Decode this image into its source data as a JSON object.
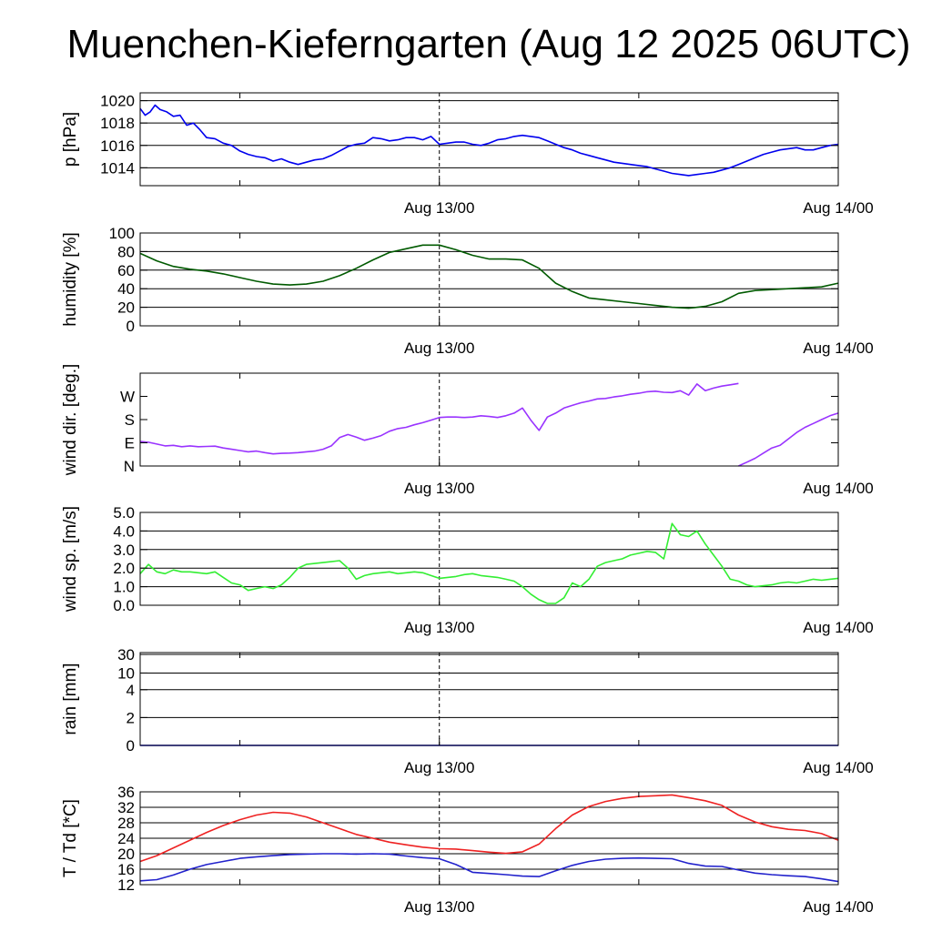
{
  "title": "Muenchen-Kieferngarten (Aug 12 2025 06UTC)",
  "time_axis": {
    "start_hour": 0,
    "end_hour": 42,
    "major_ticks": [
      {
        "hour": 18,
        "label": "Aug 13/00"
      },
      {
        "hour": 42,
        "label": "Aug 14/00"
      }
    ],
    "minor_tick_hours": [
      6,
      30
    ],
    "dashed_line_hour": 18
  },
  "chart_data": [
    {
      "id": "pressure",
      "type": "line",
      "ylabel": "p [hPa]",
      "ylim": [
        1012.4,
        1020.7
      ],
      "yticks": [
        1014,
        1016,
        1018,
        1020
      ],
      "ytick_labels": [
        "1014",
        "1016",
        "1018",
        "1020"
      ],
      "grid": [
        1014,
        1016,
        1018,
        1020
      ],
      "series": [
        {
          "name": "pressure",
          "color": "#0000ee",
          "x": [
            0,
            0.3,
            0.6,
            0.9,
            1.2,
            1.6,
            2,
            2.4,
            2.8,
            3.2,
            3.6,
            4,
            4.5,
            5,
            5.5,
            6,
            6.5,
            7,
            7.5,
            8,
            8.5,
            9,
            9.5,
            10,
            10.5,
            11,
            11.5,
            12,
            12.5,
            13,
            13.5,
            14,
            14.5,
            15,
            15.5,
            16,
            16.5,
            17,
            17.5,
            18,
            18.5,
            19,
            19.5,
            20,
            20.5,
            21,
            21.5,
            22,
            22.5,
            23,
            23.5,
            24,
            24.5,
            25,
            25.5,
            26,
            26.5,
            27,
            27.5,
            28,
            28.5,
            29,
            29.5,
            30,
            30.5,
            31,
            31.5,
            32,
            32.5,
            33,
            33.5,
            34,
            34.5,
            35,
            35.5,
            36,
            36.5,
            37,
            37.5,
            38,
            38.5,
            39,
            39.5,
            40,
            40.5,
            41,
            41.5,
            42
          ],
          "values": [
            1019.3,
            1018.7,
            1019.0,
            1019.6,
            1019.2,
            1019.0,
            1018.6,
            1018.7,
            1017.8,
            1018.0,
            1017.4,
            1016.7,
            1016.6,
            1016.2,
            1016.0,
            1015.5,
            1015.2,
            1015.0,
            1014.9,
            1014.6,
            1014.8,
            1014.5,
            1014.3,
            1014.5,
            1014.7,
            1014.8,
            1015.1,
            1015.5,
            1015.9,
            1016.1,
            1016.2,
            1016.7,
            1016.6,
            1016.4,
            1016.5,
            1016.7,
            1016.7,
            1016.5,
            1016.8,
            1016.1,
            1016.2,
            1016.3,
            1016.3,
            1016.1,
            1016.0,
            1016.2,
            1016.5,
            1016.6,
            1016.8,
            1016.9,
            1016.8,
            1016.7,
            1016.4,
            1016.1,
            1015.8,
            1015.6,
            1015.3,
            1015.1,
            1014.9,
            1014.7,
            1014.5,
            1014.4,
            1014.3,
            1014.2,
            1014.1,
            1013.9,
            1013.7,
            1013.5,
            1013.4,
            1013.3,
            1013.4,
            1013.5,
            1013.6,
            1013.8,
            1014.0,
            1014.3,
            1014.6,
            1014.9,
            1015.2,
            1015.4,
            1015.6,
            1015.7,
            1015.8,
            1015.6,
            1015.6,
            1015.8,
            1016.0,
            1016.1
          ]
        }
      ]
    },
    {
      "id": "humidity",
      "type": "line",
      "ylabel": "humidity [%]",
      "ylim": [
        0,
        100
      ],
      "yticks": [
        0,
        20,
        40,
        60,
        80,
        100
      ],
      "ytick_labels": [
        "0",
        "20",
        "40",
        "60",
        "80",
        "100"
      ],
      "grid": [
        20,
        40,
        60,
        80
      ],
      "series": [
        {
          "name": "humidity",
          "color": "#005a00",
          "x": [
            0,
            1,
            2,
            3,
            4,
            5,
            6,
            7,
            8,
            9,
            10,
            11,
            12,
            13,
            14,
            15,
            16,
            17,
            18,
            19,
            20,
            21,
            22,
            23,
            24,
            25,
            26,
            27,
            28,
            29,
            30,
            31,
            32,
            33,
            34,
            35,
            36,
            37,
            38,
            39,
            40,
            41,
            42
          ],
          "values": [
            78,
            70,
            64,
            61,
            59,
            56,
            52,
            48,
            45,
            44,
            45,
            48,
            54,
            62,
            71,
            79,
            83,
            87,
            87,
            82,
            76,
            72,
            72,
            71,
            62,
            46,
            37,
            30,
            28,
            26,
            24,
            22,
            20,
            19,
            21,
            26,
            35,
            38,
            39,
            40,
            41,
            42,
            46
          ]
        }
      ]
    },
    {
      "id": "wind_direction",
      "type": "line",
      "ylabel": "wind dir. [deg.]",
      "ylim": [
        0,
        360
      ],
      "yticks": [
        0,
        90,
        180,
        270
      ],
      "ytick_labels": [
        "N",
        "E",
        "S",
        "W"
      ],
      "grid": [],
      "series": [
        {
          "name": "wind direction",
          "color": "#9933ff",
          "x": [
            0,
            0.5,
            1,
            1.5,
            2,
            2.5,
            3,
            3.5,
            4,
            4.5,
            5,
            5.5,
            6,
            6.5,
            7,
            7.5,
            8,
            8.5,
            9,
            9.5,
            10,
            10.5,
            11,
            11.5,
            12,
            12.5,
            13,
            13.5,
            14,
            14.5,
            15,
            15.5,
            16,
            16.5,
            17,
            17.5,
            18,
            18.5,
            19,
            19.5,
            20,
            20.5,
            21,
            21.5,
            22,
            22.5,
            23,
            23.5,
            24,
            24.5,
            25,
            25.5,
            26,
            26.5,
            27,
            27.5,
            28,
            28.5,
            29,
            29.5,
            30,
            30.5,
            31,
            31.5,
            32,
            32.5,
            33,
            33.5,
            34,
            34.5,
            35,
            35.5,
            36
          ],
          "values": [
            95,
            92,
            85,
            78,
            80,
            75,
            78,
            75,
            76,
            77,
            70,
            65,
            60,
            55,
            58,
            52,
            47,
            49,
            50,
            52,
            55,
            58,
            65,
            78,
            110,
            122,
            112,
            100,
            108,
            118,
            135,
            145,
            150,
            160,
            168,
            178,
            188,
            190,
            190,
            188,
            190,
            195,
            192,
            188,
            195,
            205,
            225,
            178,
            138,
            190,
            205,
            225,
            235,
            245,
            252,
            260,
            262,
            268,
            272,
            278,
            282,
            288,
            290,
            286,
            285,
            292,
            275,
            318,
            292,
            302,
            310,
            315,
            320
          ]
        },
        {
          "name": "wind direction (wrapped)",
          "color": "#9933ff",
          "x": [
            36,
            36.5,
            37,
            37.5,
            38,
            38.5,
            39,
            39.5,
            40,
            40.5,
            41,
            41.5,
            42
          ],
          "values": [
            0,
            15,
            30,
            50,
            70,
            80,
            105,
            130,
            150,
            165,
            180,
            195,
            205
          ]
        }
      ]
    },
    {
      "id": "wind_speed",
      "type": "line",
      "ylabel": "wind sp. [m/s]",
      "ylim": [
        0,
        5
      ],
      "yticks": [
        0,
        1,
        2,
        3,
        4,
        5
      ],
      "ytick_labels": [
        "0.0",
        "1.0",
        "2.0",
        "3.0",
        "4.0",
        "5.0"
      ],
      "grid": [
        1,
        2,
        3,
        4
      ],
      "series": [
        {
          "name": "wind speed",
          "color": "#33ee33",
          "x": [
            0,
            0.5,
            1,
            1.5,
            2,
            2.5,
            3,
            3.5,
            4,
            4.5,
            5,
            5.5,
            6,
            6.5,
            7,
            7.5,
            8,
            8.5,
            9,
            9.5,
            10,
            10.5,
            11,
            11.5,
            12,
            12.5,
            13,
            13.5,
            14,
            14.5,
            15,
            15.5,
            16,
            16.5,
            17,
            17.5,
            18,
            18.5,
            19,
            19.5,
            20,
            20.5,
            21,
            21.5,
            22,
            22.5,
            23,
            23.5,
            24,
            24.5,
            25,
            25.5,
            26,
            26.5,
            27,
            27.5,
            28,
            28.5,
            29,
            29.5,
            30,
            30.5,
            31,
            31.5,
            32,
            32.5,
            33,
            33.5,
            34,
            34.5,
            35,
            35.5,
            36,
            36.5,
            37,
            37.5,
            38,
            38.5,
            39,
            39.5,
            40,
            40.5,
            41,
            41.5,
            42
          ],
          "values": [
            1.7,
            2.2,
            1.8,
            1.7,
            1.9,
            1.8,
            1.8,
            1.75,
            1.7,
            1.8,
            1.5,
            1.2,
            1.1,
            0.8,
            0.9,
            1.0,
            0.9,
            1.1,
            1.5,
            2.0,
            2.2,
            2.25,
            2.3,
            2.35,
            2.4,
            2.0,
            1.4,
            1.6,
            1.7,
            1.75,
            1.8,
            1.7,
            1.75,
            1.8,
            1.75,
            1.6,
            1.45,
            1.5,
            1.55,
            1.65,
            1.7,
            1.6,
            1.55,
            1.5,
            1.4,
            1.3,
            1.0,
            0.6,
            0.3,
            0.1,
            0.1,
            0.4,
            1.2,
            1.0,
            1.4,
            2.1,
            2.3,
            2.4,
            2.5,
            2.7,
            2.8,
            2.9,
            2.85,
            2.5,
            4.4,
            3.8,
            3.7,
            4.0,
            3.3,
            2.7,
            2.1,
            1.4,
            1.3,
            1.1,
            1.0,
            1.05,
            1.1,
            1.2,
            1.25,
            1.2,
            1.3,
            1.4,
            1.35,
            1.4,
            1.45
          ]
        }
      ]
    },
    {
      "id": "rain",
      "type": "line",
      "ylabel": "rain [mm]",
      "ylim": [
        0,
        30
      ],
      "yticks": [
        0,
        2,
        4,
        10,
        30
      ],
      "ytick_labels": [
        "0",
        "2",
        "4",
        "10",
        "30"
      ],
      "grid": [
        2,
        4,
        10,
        30
      ],
      "series": [
        {
          "name": "rain",
          "color": "#0000ee",
          "x": [
            0,
            42
          ],
          "values": [
            0,
            0
          ]
        }
      ]
    },
    {
      "id": "temperature",
      "type": "line",
      "ylabel": "T / Td [*C]",
      "ylim": [
        12,
        36
      ],
      "yticks": [
        12,
        16,
        20,
        24,
        28,
        32,
        36
      ],
      "ytick_labels": [
        "12",
        "16",
        "20",
        "24",
        "28",
        "32",
        "36"
      ],
      "grid": [
        16,
        20,
        24,
        28,
        32
      ],
      "series": [
        {
          "name": "T",
          "color": "#ee2222",
          "x": [
            0,
            1,
            2,
            3,
            4,
            5,
            6,
            7,
            8,
            9,
            10,
            11,
            12,
            13,
            14,
            15,
            16,
            17,
            18,
            19,
            20,
            21,
            22,
            23,
            24,
            25,
            26,
            27,
            28,
            29,
            30,
            31,
            32,
            33,
            34,
            35,
            36,
            37,
            38,
            39,
            40,
            41,
            42
          ],
          "values": [
            18,
            19.5,
            21.5,
            23.5,
            25.5,
            27.3,
            28.8,
            30,
            30.7,
            30.5,
            29.5,
            28,
            26.5,
            25,
            24,
            23,
            22.3,
            21.7,
            21.3,
            21.2,
            20.8,
            20.4,
            20.1,
            20.5,
            22.5,
            26.5,
            30,
            32.2,
            33.5,
            34.3,
            34.8,
            35,
            35.2,
            34.5,
            33.7,
            32.5,
            30,
            28.2,
            27,
            26.3,
            26,
            25.2,
            23.5
          ]
        },
        {
          "name": "Td",
          "color": "#2222cc",
          "x": [
            0,
            1,
            2,
            3,
            4,
            5,
            6,
            7,
            8,
            9,
            10,
            11,
            12,
            13,
            14,
            15,
            16,
            17,
            18,
            19,
            20,
            21,
            22,
            23,
            24,
            25,
            26,
            27,
            28,
            29,
            30,
            31,
            32,
            33,
            34,
            35,
            36,
            37,
            38,
            39,
            40,
            41,
            42
          ],
          "values": [
            13,
            13.3,
            14.5,
            16,
            17.2,
            18,
            18.8,
            19.2,
            19.5,
            19.8,
            19.9,
            20,
            20,
            19.9,
            20,
            19.9,
            19.4,
            19,
            18.7,
            17.2,
            15.2,
            14.9,
            14.6,
            14.2,
            14.1,
            15.6,
            17,
            18,
            18.6,
            18.8,
            18.9,
            18.8,
            18.7,
            17.5,
            16.8,
            16.7,
            15.8,
            15,
            14.6,
            14.3,
            14.1,
            13.5,
            12.8
          ]
        }
      ]
    }
  ]
}
